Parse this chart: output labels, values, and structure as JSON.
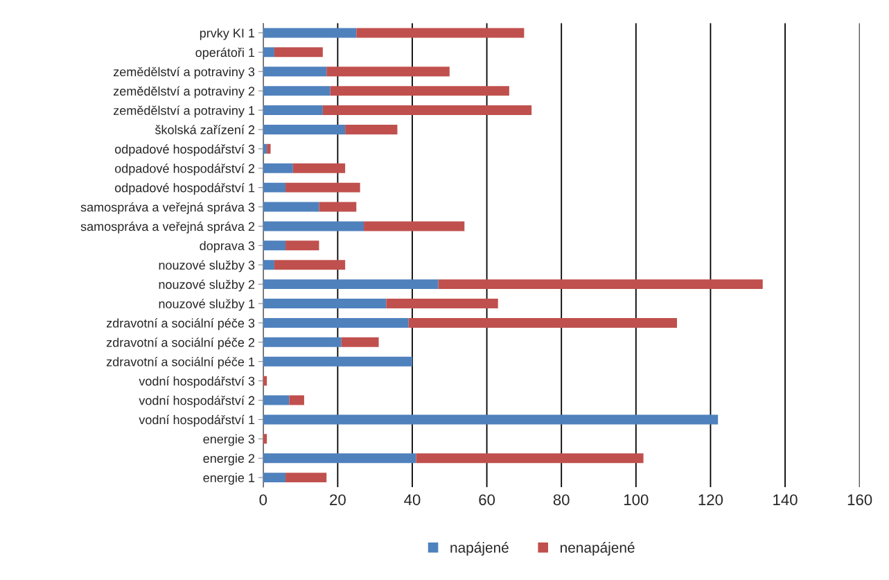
{
  "chart_data": {
    "type": "bar",
    "orientation": "horizontal",
    "stacked": true,
    "categories": [
      "prvky KI 1",
      "operátoři 1",
      "zemědělství a potraviny 3",
      "zemědělství a potraviny 2",
      "zemědělství a potraviny 1",
      "školská zařízení 2",
      "odpadové hospodářství 3",
      "odpadové hospodářství 2",
      "odpadové hospodářství 1",
      "samospráva a veřejná správa 3",
      "samospráva a veřejná správa 2",
      "doprava 3",
      "nouzové služby 3",
      "nouzové služby 2",
      "nouzové služby 1",
      "zdravotní a sociální péče 3",
      "zdravotní a sociální péče 2",
      "zdravotní a sociální péče 1",
      "vodní hospodářství 3",
      "vodní hospodářství 2",
      "vodní hospodářství 1",
      "energie 3",
      "energie 2",
      "energie 1"
    ],
    "series": [
      {
        "name": "napájené",
        "color": "#4f81bd",
        "values": [
          25,
          3,
          17,
          18,
          16,
          22,
          1,
          8,
          6,
          15,
          27,
          6,
          3,
          47,
          33,
          39,
          21,
          40,
          null,
          7,
          122,
          null,
          41,
          6
        ]
      },
      {
        "name": "nenapájené",
        "color": "#c0504d",
        "values": [
          45,
          13,
          33,
          48,
          56,
          14,
          1,
          14,
          20,
          10,
          27,
          9,
          19,
          87,
          30,
          72,
          10,
          null,
          1,
          4,
          null,
          1,
          61,
          11
        ]
      }
    ],
    "xlim": [
      0,
      160
    ],
    "xticks": [
      0,
      20,
      40,
      60,
      80,
      100,
      120,
      140,
      160
    ],
    "grid": "x",
    "legend": "bottom"
  }
}
